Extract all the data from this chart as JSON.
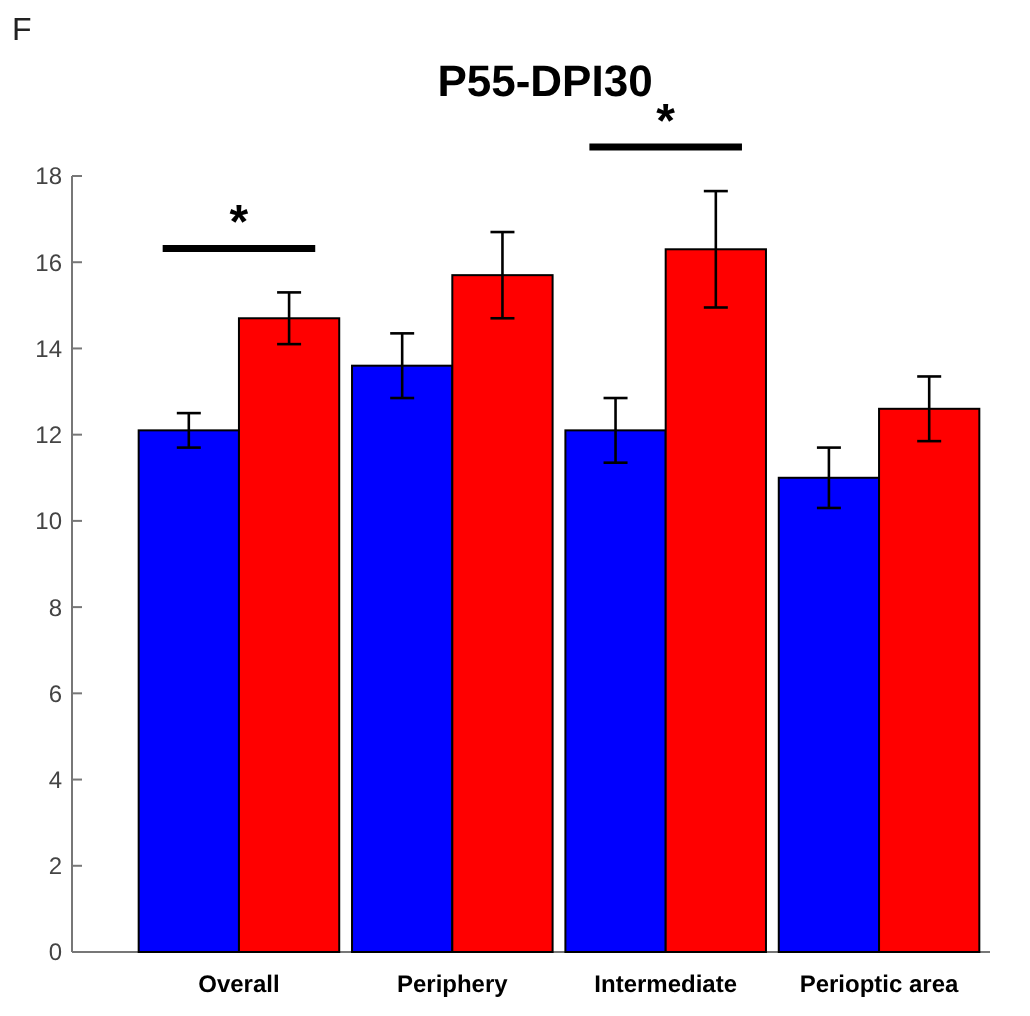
{
  "chart_data": {
    "type": "bar",
    "title": "P55-DPI30",
    "categories": [
      "Overall",
      "Periphery",
      "Intermediate",
      "Perioptic area"
    ],
    "series": [
      {
        "color": "#0000ff",
        "values": [
          12.1,
          13.6,
          12.1,
          11.0
        ],
        "errors": [
          0.4,
          0.75,
          0.75,
          0.7
        ]
      },
      {
        "color": "#ff0000",
        "values": [
          14.7,
          15.7,
          16.3,
          12.6
        ],
        "errors": [
          0.6,
          1.0,
          1.35,
          0.75
        ]
      }
    ],
    "ylim": [
      0,
      18
    ],
    "yticks": [
      0,
      2,
      4,
      6,
      8,
      10,
      12,
      14,
      16,
      18
    ],
    "grid": false,
    "annotations": [
      "F",
      "*",
      "*"
    ]
  }
}
